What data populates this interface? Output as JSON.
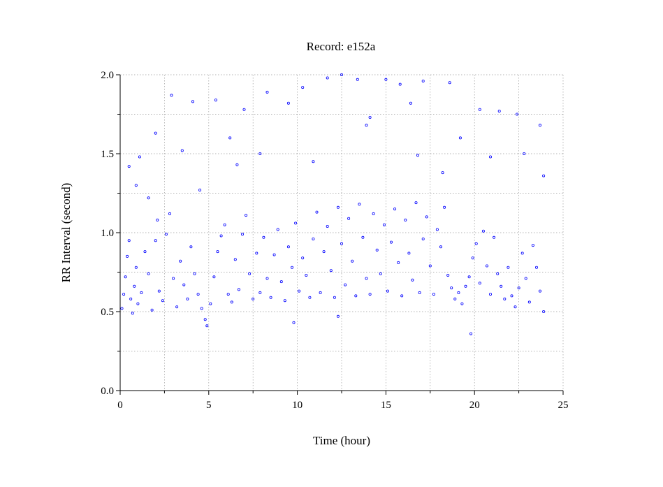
{
  "chart_data": {
    "type": "scatter",
    "title": "Record:  e152a",
    "xlabel": "Time (hour)",
    "ylabel": "RR Interval (second)",
    "xlim": [
      0,
      25
    ],
    "ylim": [
      0,
      2
    ],
    "x_ticks": [
      0,
      5,
      10,
      15,
      20,
      25
    ],
    "x_tick_labels": [
      "0",
      "5",
      "10",
      "15",
      "20",
      "25"
    ],
    "y_ticks": [
      0,
      0.5,
      1,
      1.5,
      2
    ],
    "y_tick_labels": [
      "0.0",
      "0.5",
      "1.0",
      "1.5",
      "2.0"
    ],
    "grid": true,
    "marker": "hollow-circle",
    "color": "#0000ff",
    "series": [
      {
        "points": [
          [
            0.1,
            0.52
          ],
          [
            0.2,
            0.61
          ],
          [
            0.3,
            0.72
          ],
          [
            0.4,
            0.85
          ],
          [
            0.5,
            0.95
          ],
          [
            0.6,
            0.58
          ],
          [
            0.7,
            0.49
          ],
          [
            0.8,
            0.66
          ],
          [
            0.9,
            0.78
          ],
          [
            1.0,
            0.55
          ],
          [
            1.2,
            0.62
          ],
          [
            1.4,
            0.88
          ],
          [
            1.6,
            0.74
          ],
          [
            1.8,
            0.51
          ],
          [
            2.0,
            0.95
          ],
          [
            2.1,
            1.08
          ],
          [
            2.2,
            0.63
          ],
          [
            2.4,
            0.57
          ],
          [
            2.6,
            0.99
          ],
          [
            2.8,
            1.12
          ],
          [
            3.0,
            0.71
          ],
          [
            3.2,
            0.53
          ],
          [
            3.4,
            0.82
          ],
          [
            3.6,
            0.67
          ],
          [
            3.8,
            0.58
          ],
          [
            4.0,
            0.91
          ],
          [
            4.2,
            0.74
          ],
          [
            4.4,
            0.61
          ],
          [
            4.6,
            0.52
          ],
          [
            4.8,
            0.45
          ],
          [
            4.9,
            0.41
          ],
          [
            5.1,
            0.55
          ],
          [
            5.3,
            0.72
          ],
          [
            5.5,
            0.88
          ],
          [
            5.7,
            0.98
          ],
          [
            5.9,
            1.05
          ],
          [
            6.1,
            0.61
          ],
          [
            6.3,
            0.56
          ],
          [
            6.5,
            0.83
          ],
          [
            6.7,
            0.64
          ],
          [
            6.9,
            0.99
          ],
          [
            7.1,
            1.11
          ],
          [
            7.3,
            0.74
          ],
          [
            7.5,
            0.58
          ],
          [
            7.7,
            0.87
          ],
          [
            7.9,
            0.62
          ],
          [
            8.1,
            0.97
          ],
          [
            8.3,
            0.71
          ],
          [
            8.5,
            0.59
          ],
          [
            8.7,
            0.86
          ],
          [
            8.9,
            1.02
          ],
          [
            9.1,
            0.69
          ],
          [
            9.3,
            0.57
          ],
          [
            9.5,
            0.91
          ],
          [
            9.7,
            0.78
          ],
          [
            9.9,
            1.06
          ],
          [
            10.1,
            0.63
          ],
          [
            10.3,
            0.84
          ],
          [
            10.5,
            0.73
          ],
          [
            10.7,
            0.59
          ],
          [
            10.9,
            0.96
          ],
          [
            11.1,
            1.13
          ],
          [
            11.3,
            0.62
          ],
          [
            11.5,
            0.88
          ],
          [
            11.7,
            1.04
          ],
          [
            11.9,
            0.76
          ],
          [
            12.1,
            0.59
          ],
          [
            12.3,
            1.16
          ],
          [
            12.5,
            0.93
          ],
          [
            12.7,
            0.67
          ],
          [
            12.9,
            1.09
          ],
          [
            13.1,
            0.82
          ],
          [
            13.3,
            0.6
          ],
          [
            13.5,
            1.18
          ],
          [
            13.7,
            0.97
          ],
          [
            13.9,
            0.71
          ],
          [
            14.1,
            0.61
          ],
          [
            14.3,
            1.12
          ],
          [
            14.5,
            0.89
          ],
          [
            14.7,
            0.74
          ],
          [
            14.9,
            1.05
          ],
          [
            15.1,
            0.63
          ],
          [
            15.3,
            0.94
          ],
          [
            15.5,
            1.15
          ],
          [
            15.7,
            0.81
          ],
          [
            15.9,
            0.6
          ],
          [
            16.1,
            1.08
          ],
          [
            16.3,
            0.87
          ],
          [
            16.5,
            0.7
          ],
          [
            16.7,
            1.19
          ],
          [
            16.9,
            0.62
          ],
          [
            17.1,
            0.96
          ],
          [
            17.3,
            1.1
          ],
          [
            17.5,
            0.79
          ],
          [
            17.7,
            0.61
          ],
          [
            17.9,
            1.02
          ],
          [
            18.1,
            0.91
          ],
          [
            18.3,
            1.16
          ],
          [
            18.5,
            0.73
          ],
          [
            18.7,
            0.65
          ],
          [
            18.9,
            0.58
          ],
          [
            19.1,
            0.62
          ],
          [
            19.3,
            0.55
          ],
          [
            19.5,
            0.66
          ],
          [
            19.7,
            0.72
          ],
          [
            19.8,
            0.36
          ],
          [
            19.9,
            0.84
          ],
          [
            20.1,
            0.93
          ],
          [
            20.3,
            0.68
          ],
          [
            20.5,
            1.01
          ],
          [
            20.7,
            0.79
          ],
          [
            20.9,
            0.61
          ],
          [
            21.1,
            0.97
          ],
          [
            21.3,
            0.74
          ],
          [
            21.5,
            0.66
          ],
          [
            21.7,
            0.58
          ],
          [
            21.9,
            0.78
          ],
          [
            22.1,
            0.6
          ],
          [
            22.3,
            0.53
          ],
          [
            22.5,
            0.65
          ],
          [
            22.7,
            0.87
          ],
          [
            22.9,
            0.71
          ],
          [
            23.1,
            0.56
          ],
          [
            23.3,
            0.92
          ],
          [
            23.5,
            0.78
          ],
          [
            23.7,
            0.63
          ],
          [
            23.9,
            0.5
          ],
          [
            0.5,
            1.42
          ],
          [
            1.1,
            1.48
          ],
          [
            2.0,
            1.63
          ],
          [
            2.9,
            1.87
          ],
          [
            4.1,
            1.83
          ],
          [
            5.4,
            1.84
          ],
          [
            6.2,
            1.6
          ],
          [
            7.0,
            1.78
          ],
          [
            8.3,
            1.89
          ],
          [
            9.5,
            1.82
          ],
          [
            10.3,
            1.92
          ],
          [
            11.7,
            1.98
          ],
          [
            12.5,
            2.0
          ],
          [
            13.4,
            1.97
          ],
          [
            14.1,
            1.73
          ],
          [
            15.0,
            1.97
          ],
          [
            15.8,
            1.94
          ],
          [
            16.4,
            1.82
          ],
          [
            17.1,
            1.96
          ],
          [
            18.6,
            1.95
          ],
          [
            19.2,
            1.6
          ],
          [
            20.3,
            1.78
          ],
          [
            21.4,
            1.77
          ],
          [
            22.4,
            1.75
          ],
          [
            23.7,
            1.68
          ],
          [
            9.8,
            0.43
          ],
          [
            12.3,
            0.47
          ],
          [
            0.9,
            1.3
          ],
          [
            3.5,
            1.52
          ],
          [
            7.9,
            1.5
          ],
          [
            10.9,
            1.45
          ],
          [
            13.9,
            1.68
          ],
          [
            16.8,
            1.49
          ],
          [
            18.2,
            1.38
          ],
          [
            20.9,
            1.48
          ],
          [
            22.8,
            1.5
          ],
          [
            23.9,
            1.36
          ],
          [
            6.6,
            1.43
          ],
          [
            1.6,
            1.22
          ],
          [
            4.5,
            1.27
          ]
        ]
      }
    ]
  }
}
